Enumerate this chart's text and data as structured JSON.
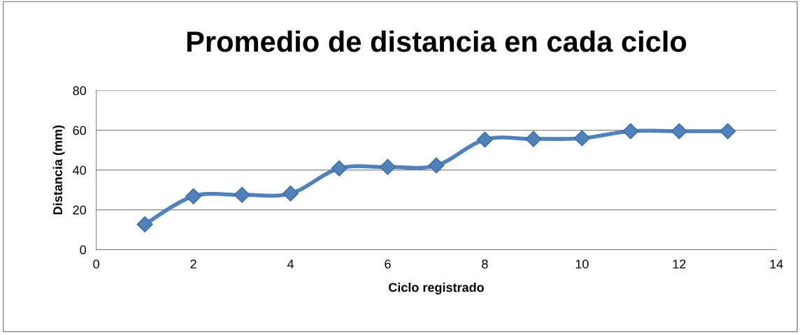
{
  "chart_data": {
    "type": "line",
    "title": "Promedio de distancia en cada ciclo",
    "xlabel": "Ciclo registrado",
    "ylabel": "Distancia (mm)",
    "x": [
      1,
      2,
      3,
      4,
      5,
      6,
      7,
      8,
      9,
      10,
      11,
      12,
      13
    ],
    "series": [
      {
        "color": "#4f81bd",
        "values": [
          12.7,
          26.8,
          27.5,
          28.2,
          40.8,
          41.5,
          42.3,
          55.3,
          55.6,
          56,
          59.5,
          59.5,
          59.5
        ]
      }
    ],
    "xlim": [
      0,
      14
    ],
    "xticks": [
      0,
      2,
      4,
      6,
      8,
      10,
      12,
      14
    ],
    "ylim": [
      0,
      80
    ],
    "yticks": [
      0,
      20,
      40,
      60,
      80
    ],
    "grid": "y",
    "marker": "diamond",
    "line_style": "solid"
  }
}
